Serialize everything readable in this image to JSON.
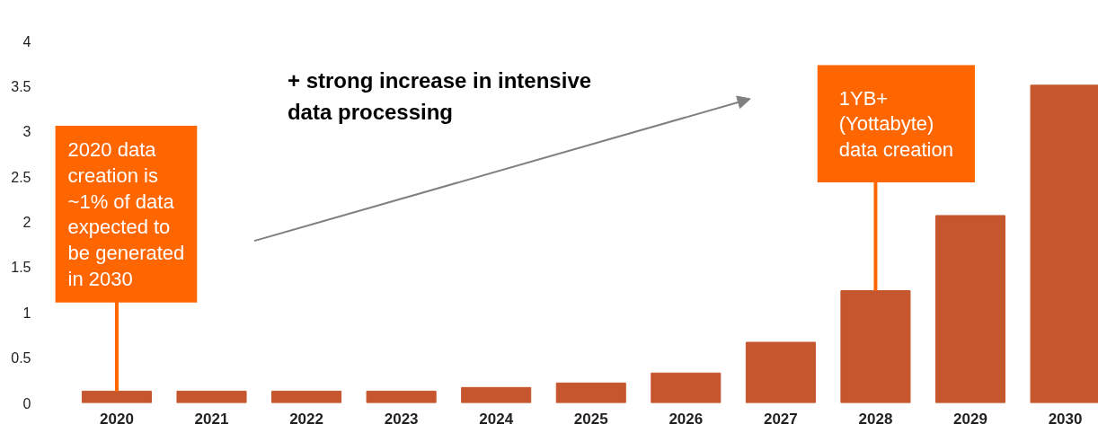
{
  "chart_data": {
    "type": "bar",
    "categories": [
      "2020",
      "2021",
      "2022",
      "2023",
      "2024",
      "2025",
      "2026",
      "2027",
      "2028",
      "2029",
      "2030"
    ],
    "values": [
      0.13,
      0.13,
      0.13,
      0.13,
      0.17,
      0.22,
      0.33,
      0.67,
      1.24,
      2.07,
      3.51
    ],
    "color": "#c5562d",
    "ylim": [
      0,
      4
    ],
    "yticks": [
      0,
      0.5,
      1,
      1.5,
      2,
      2.5,
      3,
      3.5,
      4
    ],
    "grid": false,
    "annotations": [
      {
        "text": "2020 data\ncreation is\n~1% of data\nexpected to\nbe generated\nin 2030",
        "x": "2020",
        "y": 0.13
      },
      {
        "text": "1YB+\n(Yottabyte)\ndata creation",
        "x": "2028",
        "y": 1.24
      },
      "+ strong increase in intensive\ndata processing"
    ]
  }
}
